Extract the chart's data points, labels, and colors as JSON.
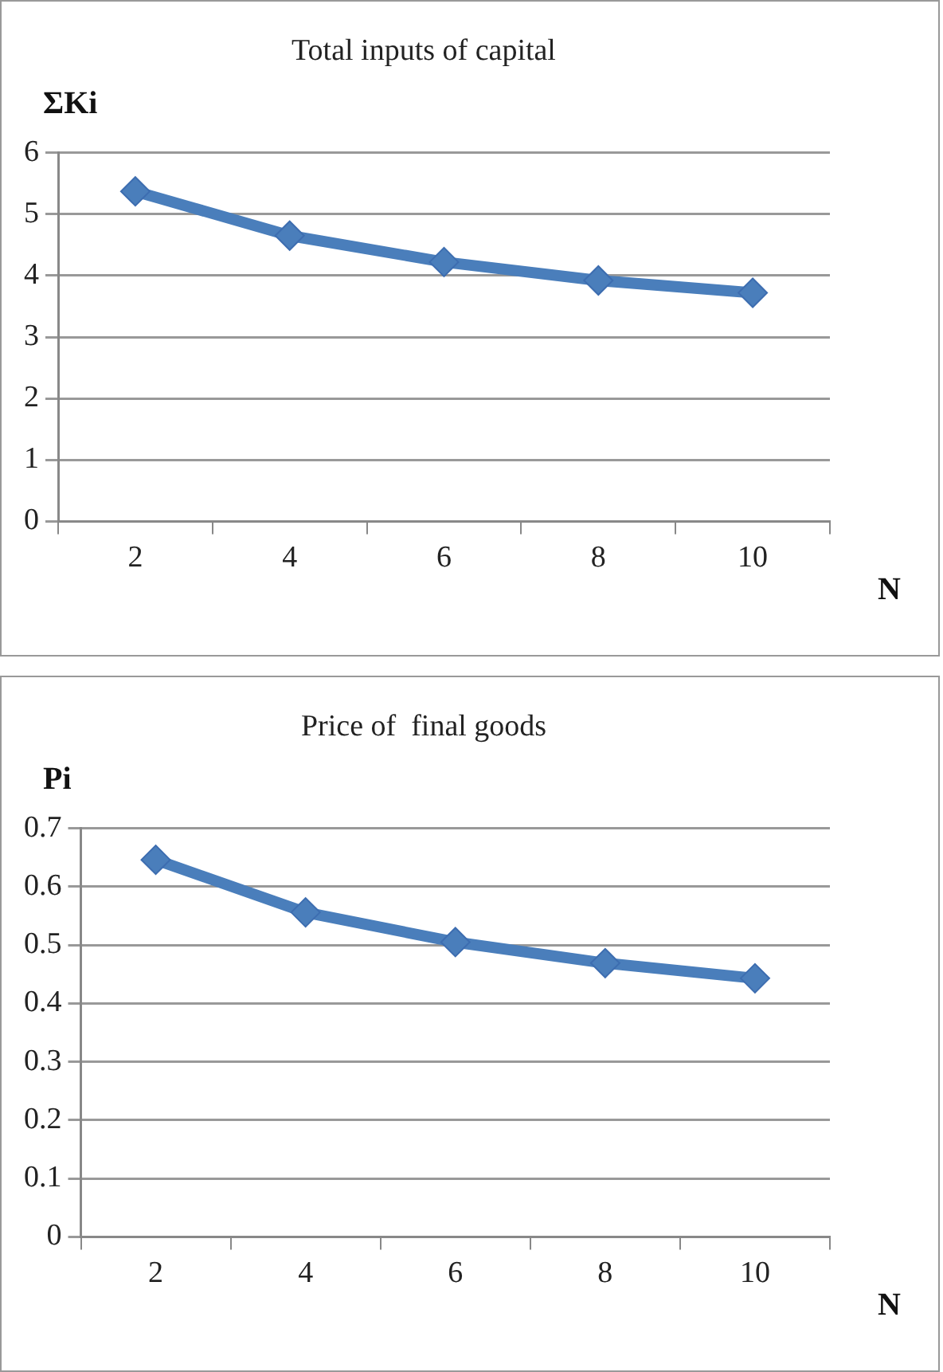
{
  "chart_data": [
    {
      "type": "line",
      "title": "Total inputs of capital",
      "ylabel": "ΣKi",
      "xlabel": "N",
      "categories": [
        "2",
        "4",
        "6",
        "8",
        "10"
      ],
      "series": [
        {
          "color": "#4a7ebb",
          "values": [
            5.37,
            4.65,
            4.22,
            3.92,
            3.72
          ]
        }
      ],
      "ylim": [
        0,
        6
      ],
      "yticks": [
        0,
        1,
        2,
        3,
        4,
        5,
        6
      ],
      "grid": "y",
      "legend": false,
      "marker": "diamond",
      "line_style": "solid"
    },
    {
      "type": "line",
      "title": "Price of  final goods",
      "ylabel": "Pi",
      "xlabel": "N",
      "categories": [
        "2",
        "4",
        "6",
        "8",
        "10"
      ],
      "series": [
        {
          "color": "#4a7ebb",
          "values": [
            0.646,
            0.556,
            0.505,
            0.469,
            0.443
          ]
        }
      ],
      "ylim": [
        0,
        0.7
      ],
      "yticks": [
        0,
        0.1,
        0.2,
        0.3,
        0.4,
        0.5,
        0.6,
        0.7
      ],
      "grid": "y",
      "legend": false,
      "marker": "diamond",
      "line_style": "solid"
    }
  ]
}
